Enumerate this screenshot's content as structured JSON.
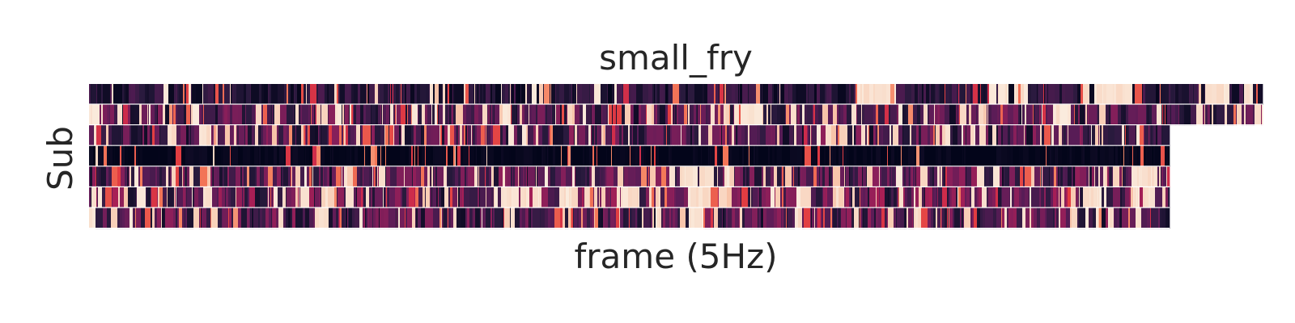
{
  "chart_data": {
    "type": "heatmap",
    "title": "small_fry",
    "xlabel": "frame (5Hz)",
    "ylabel": "Sub",
    "grid": false,
    "legend": "none",
    "colormap": [
      "#03051a",
      "#2a1a3e",
      "#5a1c57",
      "#8a1f5a",
      "#bd1f52",
      "#e23d41",
      "#f47b5a",
      "#f7b89a",
      "#faebdd"
    ],
    "missing_color": "#ffffff",
    "value_range": [
      0,
      1
    ],
    "n_frames": 1450,
    "rows": [
      {
        "length": 1450,
        "base": 0.18,
        "light_frac": 0.05,
        "light_segments": [
          [
            951,
            998
          ],
          [
            1110,
            1160
          ],
          [
            1230,
            1290
          ],
          [
            1380,
            1410
          ],
          [
            1426,
            1440
          ]
        ]
      },
      {
        "length": 1450,
        "base": 0.28,
        "light_frac": 0.2,
        "light_segments": [
          [
            0,
            20
          ],
          [
            800,
            830
          ],
          [
            1188,
            1210
          ]
        ]
      },
      {
        "length": 1335,
        "base": 0.3,
        "light_frac": 0.16,
        "light_segments": [
          [
            96,
            106
          ],
          [
            132,
            152
          ],
          [
            520,
            540
          ],
          [
            1090,
            1108
          ]
        ]
      },
      {
        "length": 1335,
        "base": 0.06,
        "light_frac": 0.01,
        "light_segments": [
          [
            3,
            10
          ]
        ]
      },
      {
        "length": 1335,
        "base": 0.3,
        "light_frac": 0.16,
        "light_segments": [
          [
            720,
            780
          ],
          [
            1290,
            1320
          ]
        ]
      },
      {
        "length": 1335,
        "base": 0.34,
        "light_frac": 0.22,
        "light_segments": [
          [
            140,
            152
          ],
          [
            510,
            560
          ],
          [
            580,
            600
          ],
          [
            650,
            680
          ],
          [
            740,
            770
          ],
          [
            880,
            900
          ],
          [
            1230,
            1260
          ],
          [
            1290,
            1320
          ]
        ]
      },
      {
        "length": 1335,
        "base": 0.3,
        "light_frac": 0.14,
        "light_segments": [
          [
            2,
            8
          ],
          [
            280,
            300
          ],
          [
            700,
            708
          ],
          [
            740,
            760
          ],
          [
            1020,
            1030
          ],
          [
            1290,
            1300
          ]
        ]
      }
    ]
  }
}
